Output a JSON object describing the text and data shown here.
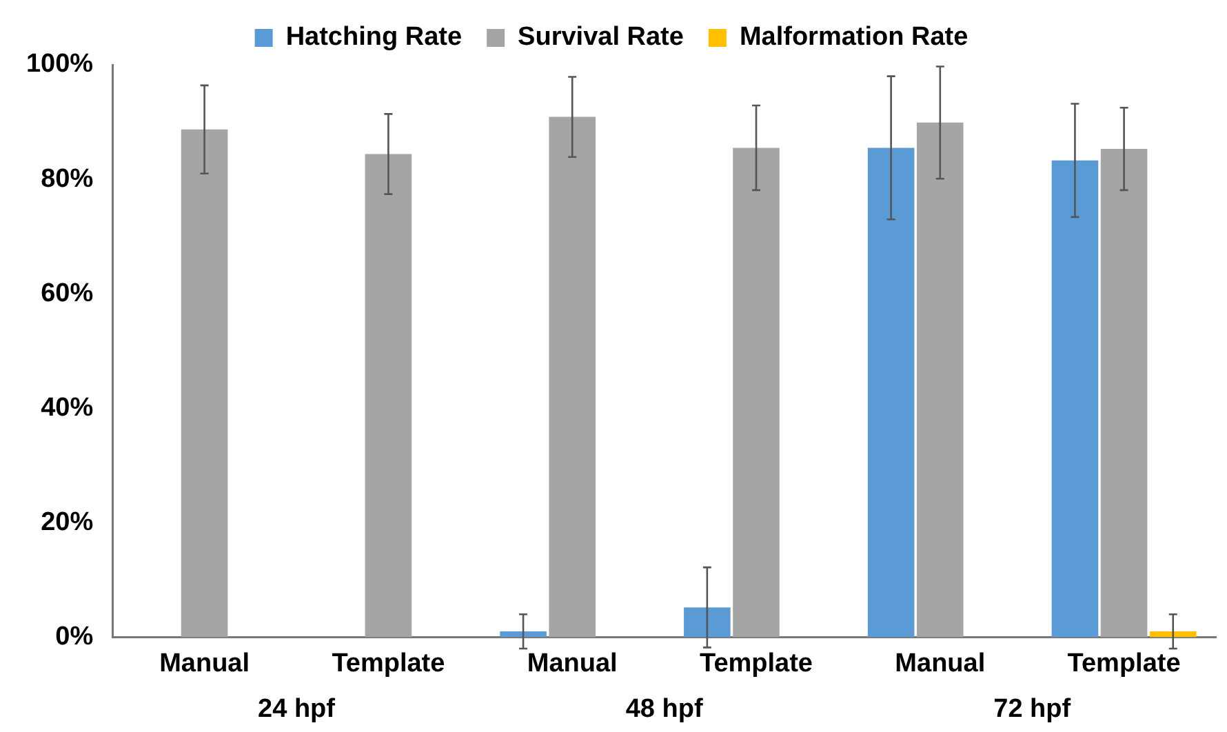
{
  "chart_data": {
    "type": "bar",
    "categories": [
      "Manual",
      "Template",
      "Manual",
      "Template",
      "Manual",
      "Template"
    ],
    "series": [
      {
        "name": "Hatching Rate",
        "color": "#5b9bd5",
        "values": [
          0,
          0,
          1,
          5.2,
          85.5,
          83.3
        ],
        "errors": [
          null,
          null,
          3,
          7,
          12.5,
          9.9
        ]
      },
      {
        "name": "Survival Rate",
        "color": "#a5a5a5",
        "values": [
          88.7,
          84.4,
          90.9,
          85.5,
          89.9,
          85.3
        ],
        "errors": [
          7.7,
          7,
          7,
          7.4,
          9.8,
          7.2
        ]
      },
      {
        "name": "Malformation Rate",
        "color": "#ffc000",
        "values": [
          0,
          0,
          0,
          0,
          0,
          1
        ],
        "errors": [
          null,
          null,
          null,
          null,
          null,
          3
        ]
      }
    ],
    "ylim": [
      0,
      100
    ],
    "yticks": [
      {
        "value": 0,
        "label": "0%"
      },
      {
        "value": 20,
        "label": "20%"
      },
      {
        "value": 40,
        "label": "40%"
      },
      {
        "value": 60,
        "label": "60%"
      },
      {
        "value": 80,
        "label": "80%"
      },
      {
        "value": 100,
        "label": "100%"
      }
    ],
    "annotations": [
      "24 hpf",
      "48 hpf",
      "72 hpf"
    ],
    "grid": false,
    "legend": "top"
  }
}
